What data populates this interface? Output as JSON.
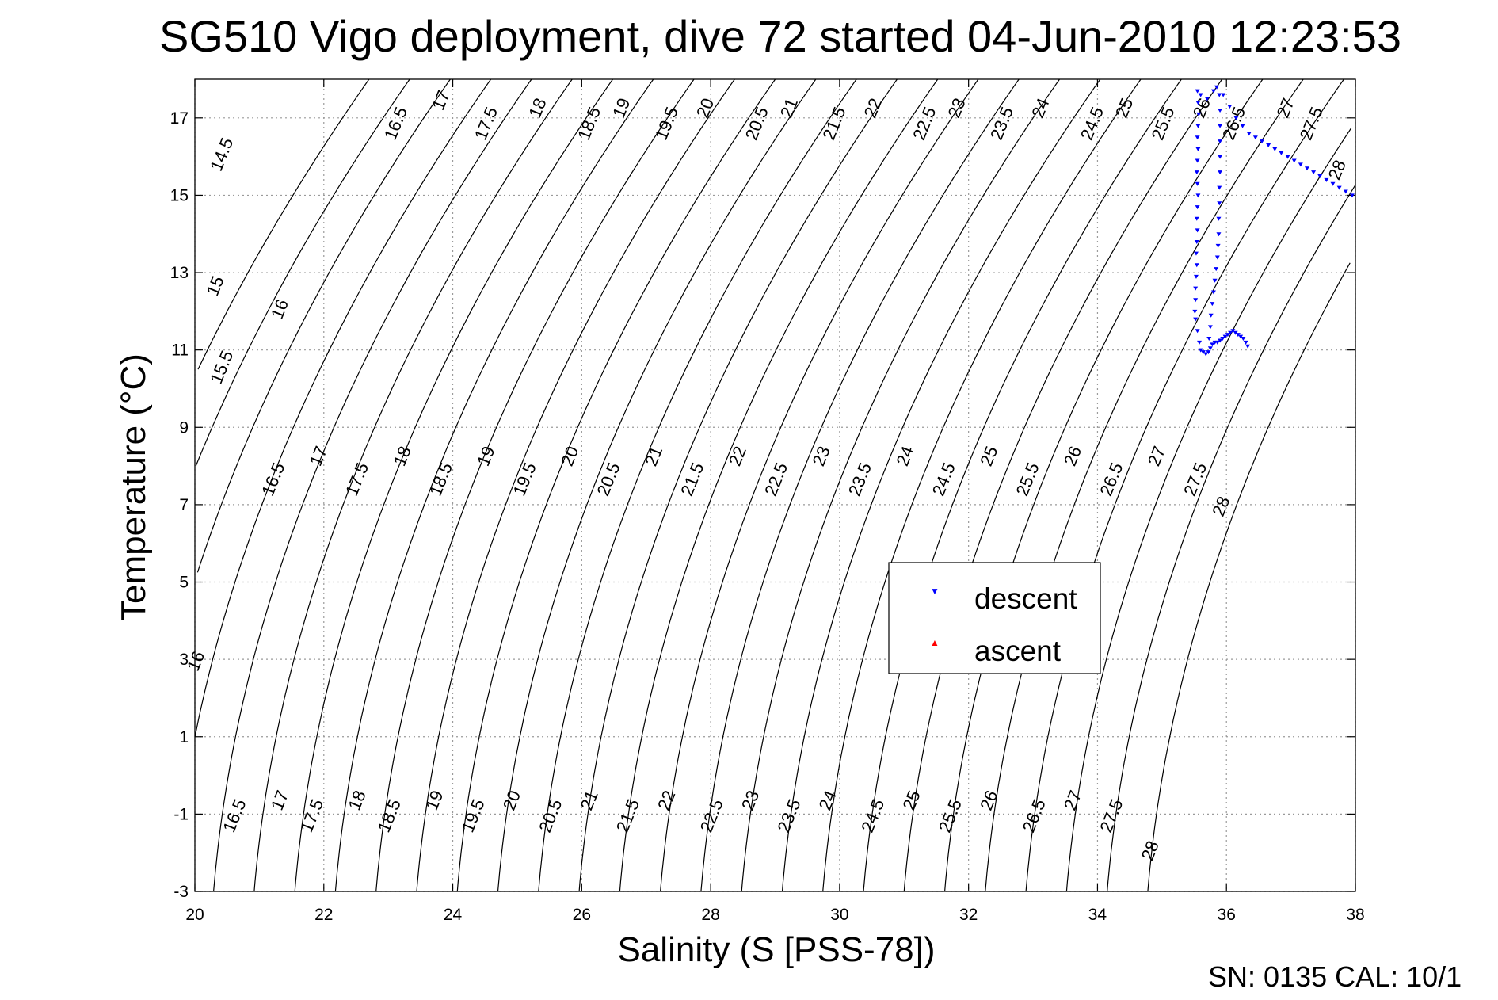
{
  "title": "SG510 Vigo deployment, dive 72 started 04-Jun-2010 12:23:53",
  "footer": "SN: 0135  CAL: 10/1",
  "chart_data": {
    "type": "scatter",
    "title": "SG510 Vigo deployment, dive 72 started 04-Jun-2010 12:23:53",
    "xlabel": "Salinity (S [PSS-78])",
    "ylabel": "Temperature (°C)",
    "xlim": [
      20,
      38
    ],
    "ylim": [
      -3,
      18
    ],
    "x_ticks": [
      20,
      22,
      24,
      26,
      28,
      30,
      32,
      34,
      36,
      38
    ],
    "y_ticks": [
      -3,
      -1,
      1,
      3,
      5,
      7,
      9,
      11,
      13,
      15,
      17
    ],
    "grid": true,
    "legend_position": "center-right",
    "legend": [
      "descent",
      "ascent"
    ],
    "colors": {
      "descent": "#0000ff",
      "ascent": "#ff0000",
      "contour": "#000000"
    },
    "contour_levels": [
      14.5,
      15,
      15.5,
      16,
      16.5,
      17,
      17.5,
      18,
      18.5,
      19,
      19.5,
      20,
      20.5,
      21,
      21.5,
      22,
      22.5,
      23,
      23.5,
      24,
      24.5,
      25,
      25.5,
      26,
      26.5,
      27,
      27.5,
      28
    ],
    "contour_labels": [
      {
        "text": "14.5",
        "s": 20.5,
        "t": 16.0
      },
      {
        "text": "15",
        "s": 20.4,
        "t": 12.6
      },
      {
        "text": "15.5",
        "s": 20.5,
        "t": 10.5
      },
      {
        "text": "16",
        "s": 21.4,
        "t": 12.0
      },
      {
        "text": "16",
        "s": 20.1,
        "t": 2.9
      },
      {
        "text": "16.5",
        "s": 23.2,
        "t": 16.8
      },
      {
        "text": "17",
        "s": 23.9,
        "t": 17.4
      },
      {
        "text": "17.5",
        "s": 24.6,
        "t": 16.8
      },
      {
        "text": "18",
        "s": 25.4,
        "t": 17.2
      },
      {
        "text": "18.5",
        "s": 26.2,
        "t": 16.8
      },
      {
        "text": "19",
        "s": 26.7,
        "t": 17.2
      },
      {
        "text": "19.5",
        "s": 27.4,
        "t": 16.8
      },
      {
        "text": "20",
        "s": 28.0,
        "t": 17.2
      },
      {
        "text": "20.5",
        "s": 28.8,
        "t": 16.8
      },
      {
        "text": "21",
        "s": 29.3,
        "t": 17.2
      },
      {
        "text": "21.5",
        "s": 30.0,
        "t": 16.8
      },
      {
        "text": "22",
        "s": 30.6,
        "t": 17.2
      },
      {
        "text": "22.5",
        "s": 31.4,
        "t": 16.8
      },
      {
        "text": "23",
        "s": 31.9,
        "t": 17.2
      },
      {
        "text": "23.5",
        "s": 32.6,
        "t": 16.8
      },
      {
        "text": "24",
        "s": 33.2,
        "t": 17.2
      },
      {
        "text": "24.5",
        "s": 34.0,
        "t": 16.8
      },
      {
        "text": "25",
        "s": 34.5,
        "t": 17.2
      },
      {
        "text": "25.5",
        "s": 35.1,
        "t": 16.8
      },
      {
        "text": "26",
        "s": 35.7,
        "t": 17.2
      },
      {
        "text": "26.5",
        "s": 36.2,
        "t": 16.8
      },
      {
        "text": "27",
        "s": 37.0,
        "t": 17.2
      },
      {
        "text": "27.5",
        "s": 37.4,
        "t": 16.8
      },
      {
        "text": "28",
        "s": 37.8,
        "t": 15.6
      },
      {
        "text": "16.5",
        "s": 21.3,
        "t": 7.6
      },
      {
        "text": "17",
        "s": 22.0,
        "t": 8.2
      },
      {
        "text": "17.5",
        "s": 22.6,
        "t": 7.6
      },
      {
        "text": "18",
        "s": 23.3,
        "t": 8.2
      },
      {
        "text": "18.5",
        "s": 23.9,
        "t": 7.6
      },
      {
        "text": "19",
        "s": 24.6,
        "t": 8.2
      },
      {
        "text": "19.5",
        "s": 25.2,
        "t": 7.6
      },
      {
        "text": "20",
        "s": 25.9,
        "t": 8.2
      },
      {
        "text": "20.5",
        "s": 26.5,
        "t": 7.6
      },
      {
        "text": "21",
        "s": 27.2,
        "t": 8.2
      },
      {
        "text": "21.5",
        "s": 27.8,
        "t": 7.6
      },
      {
        "text": "22",
        "s": 28.5,
        "t": 8.2
      },
      {
        "text": "22.5",
        "s": 29.1,
        "t": 7.6
      },
      {
        "text": "23",
        "s": 29.8,
        "t": 8.2
      },
      {
        "text": "23.5",
        "s": 30.4,
        "t": 7.6
      },
      {
        "text": "24",
        "s": 31.1,
        "t": 8.2
      },
      {
        "text": "24.5",
        "s": 31.7,
        "t": 7.6
      },
      {
        "text": "25",
        "s": 32.4,
        "t": 8.2
      },
      {
        "text": "25.5",
        "s": 33.0,
        "t": 7.6
      },
      {
        "text": "26",
        "s": 33.7,
        "t": 8.2
      },
      {
        "text": "26.5",
        "s": 34.3,
        "t": 7.6
      },
      {
        "text": "27",
        "s": 35.0,
        "t": 8.2
      },
      {
        "text": "27.5",
        "s": 35.6,
        "t": 7.6
      },
      {
        "text": "28",
        "s": 36.0,
        "t": 6.9
      },
      {
        "text": "16.5",
        "s": 20.7,
        "t": -1.1
      },
      {
        "text": "17",
        "s": 21.4,
        "t": -0.7
      },
      {
        "text": "17.5",
        "s": 21.9,
        "t": -1.1
      },
      {
        "text": "18",
        "s": 22.6,
        "t": -0.7
      },
      {
        "text": "18.5",
        "s": 23.1,
        "t": -1.1
      },
      {
        "text": "19",
        "s": 23.8,
        "t": -0.7
      },
      {
        "text": "19.5",
        "s": 24.4,
        "t": -1.1
      },
      {
        "text": "20",
        "s": 25.0,
        "t": -0.7
      },
      {
        "text": "20.5",
        "s": 25.6,
        "t": -1.1
      },
      {
        "text": "21",
        "s": 26.2,
        "t": -0.7
      },
      {
        "text": "21.5",
        "s": 26.8,
        "t": -1.1
      },
      {
        "text": "22",
        "s": 27.4,
        "t": -0.7
      },
      {
        "text": "22.5",
        "s": 28.1,
        "t": -1.1
      },
      {
        "text": "23",
        "s": 28.7,
        "t": -0.7
      },
      {
        "text": "23.5",
        "s": 29.3,
        "t": -1.1
      },
      {
        "text": "24",
        "s": 29.9,
        "t": -0.7
      },
      {
        "text": "24.5",
        "s": 30.6,
        "t": -1.1
      },
      {
        "text": "25",
        "s": 31.2,
        "t": -0.7
      },
      {
        "text": "25.5",
        "s": 31.8,
        "t": -1.1
      },
      {
        "text": "26",
        "s": 32.4,
        "t": -0.7
      },
      {
        "text": "26.5",
        "s": 33.1,
        "t": -1.1
      },
      {
        "text": "27",
        "s": 33.7,
        "t": -0.7
      },
      {
        "text": "27.5",
        "s": 34.3,
        "t": -1.1
      },
      {
        "text": "28",
        "s": 34.9,
        "t": -2.0
      }
    ],
    "series": [
      {
        "name": "descent",
        "marker": "triangle-down",
        "color": "#0000ff",
        "points": [
          [
            35.55,
            17.7
          ],
          [
            35.56,
            17.4
          ],
          [
            35.57,
            17.1
          ],
          [
            35.56,
            16.8
          ],
          [
            35.55,
            16.5
          ],
          [
            35.56,
            16.2
          ],
          [
            35.55,
            15.9
          ],
          [
            35.54,
            15.6
          ],
          [
            35.55,
            15.3
          ],
          [
            35.56,
            15.0
          ],
          [
            35.55,
            14.7
          ],
          [
            35.54,
            14.4
          ],
          [
            35.55,
            14.1
          ],
          [
            35.54,
            13.8
          ],
          [
            35.53,
            13.5
          ],
          [
            35.54,
            13.2
          ],
          [
            35.53,
            12.9
          ],
          [
            35.52,
            12.6
          ],
          [
            35.52,
            12.3
          ],
          [
            35.51,
            12.0
          ],
          [
            35.52,
            11.8
          ],
          [
            35.55,
            11.5
          ],
          [
            35.58,
            11.2
          ],
          [
            35.6,
            11.0
          ],
          [
            35.64,
            10.95
          ],
          [
            35.68,
            10.9
          ],
          [
            35.72,
            10.95
          ],
          [
            35.75,
            11.05
          ],
          [
            35.78,
            11.15
          ],
          [
            35.82,
            11.2
          ],
          [
            35.86,
            11.2
          ],
          [
            35.9,
            11.25
          ],
          [
            35.94,
            11.3
          ],
          [
            35.98,
            11.35
          ],
          [
            36.02,
            11.4
          ],
          [
            36.06,
            11.45
          ],
          [
            36.1,
            11.5
          ],
          [
            36.14,
            11.45
          ],
          [
            36.18,
            11.4
          ],
          [
            36.22,
            11.35
          ],
          [
            36.26,
            11.3
          ],
          [
            36.3,
            11.2
          ],
          [
            36.33,
            11.1
          ],
          [
            35.73,
            11.3
          ],
          [
            35.75,
            11.6
          ],
          [
            35.76,
            11.9
          ],
          [
            35.78,
            12.2
          ],
          [
            35.8,
            12.5
          ],
          [
            35.82,
            12.8
          ],
          [
            35.84,
            13.1
          ],
          [
            35.86,
            13.4
          ],
          [
            35.87,
            13.7
          ],
          [
            35.88,
            14.0
          ],
          [
            35.88,
            14.4
          ],
          [
            35.89,
            14.8
          ],
          [
            35.89,
            15.2
          ],
          [
            35.9,
            15.6
          ],
          [
            35.9,
            16.0
          ],
          [
            35.9,
            16.4
          ],
          [
            35.9,
            16.8
          ],
          [
            35.9,
            17.2
          ],
          [
            35.89,
            17.6
          ],
          [
            35.6,
            17.6
          ],
          [
            35.7,
            17.5
          ],
          [
            35.8,
            17.7
          ],
          [
            35.85,
            17.8
          ],
          [
            35.95,
            17.6
          ],
          [
            36.05,
            17.3
          ],
          [
            36.15,
            17.0
          ],
          [
            36.25,
            16.8
          ],
          [
            36.35,
            16.6
          ],
          [
            36.45,
            16.5
          ],
          [
            36.55,
            16.4
          ],
          [
            36.65,
            16.3
          ],
          [
            36.75,
            16.2
          ],
          [
            36.85,
            16.1
          ],
          [
            36.95,
            16.0
          ],
          [
            37.05,
            15.9
          ],
          [
            37.15,
            15.8
          ],
          [
            37.25,
            15.7
          ],
          [
            37.35,
            15.6
          ],
          [
            37.45,
            15.5
          ],
          [
            37.55,
            15.4
          ],
          [
            37.65,
            15.3
          ],
          [
            37.75,
            15.2
          ],
          [
            37.85,
            15.1
          ],
          [
            37.95,
            15.0
          ]
        ]
      },
      {
        "name": "ascent",
        "marker": "triangle-up",
        "color": "#ff0000",
        "points": []
      }
    ]
  }
}
